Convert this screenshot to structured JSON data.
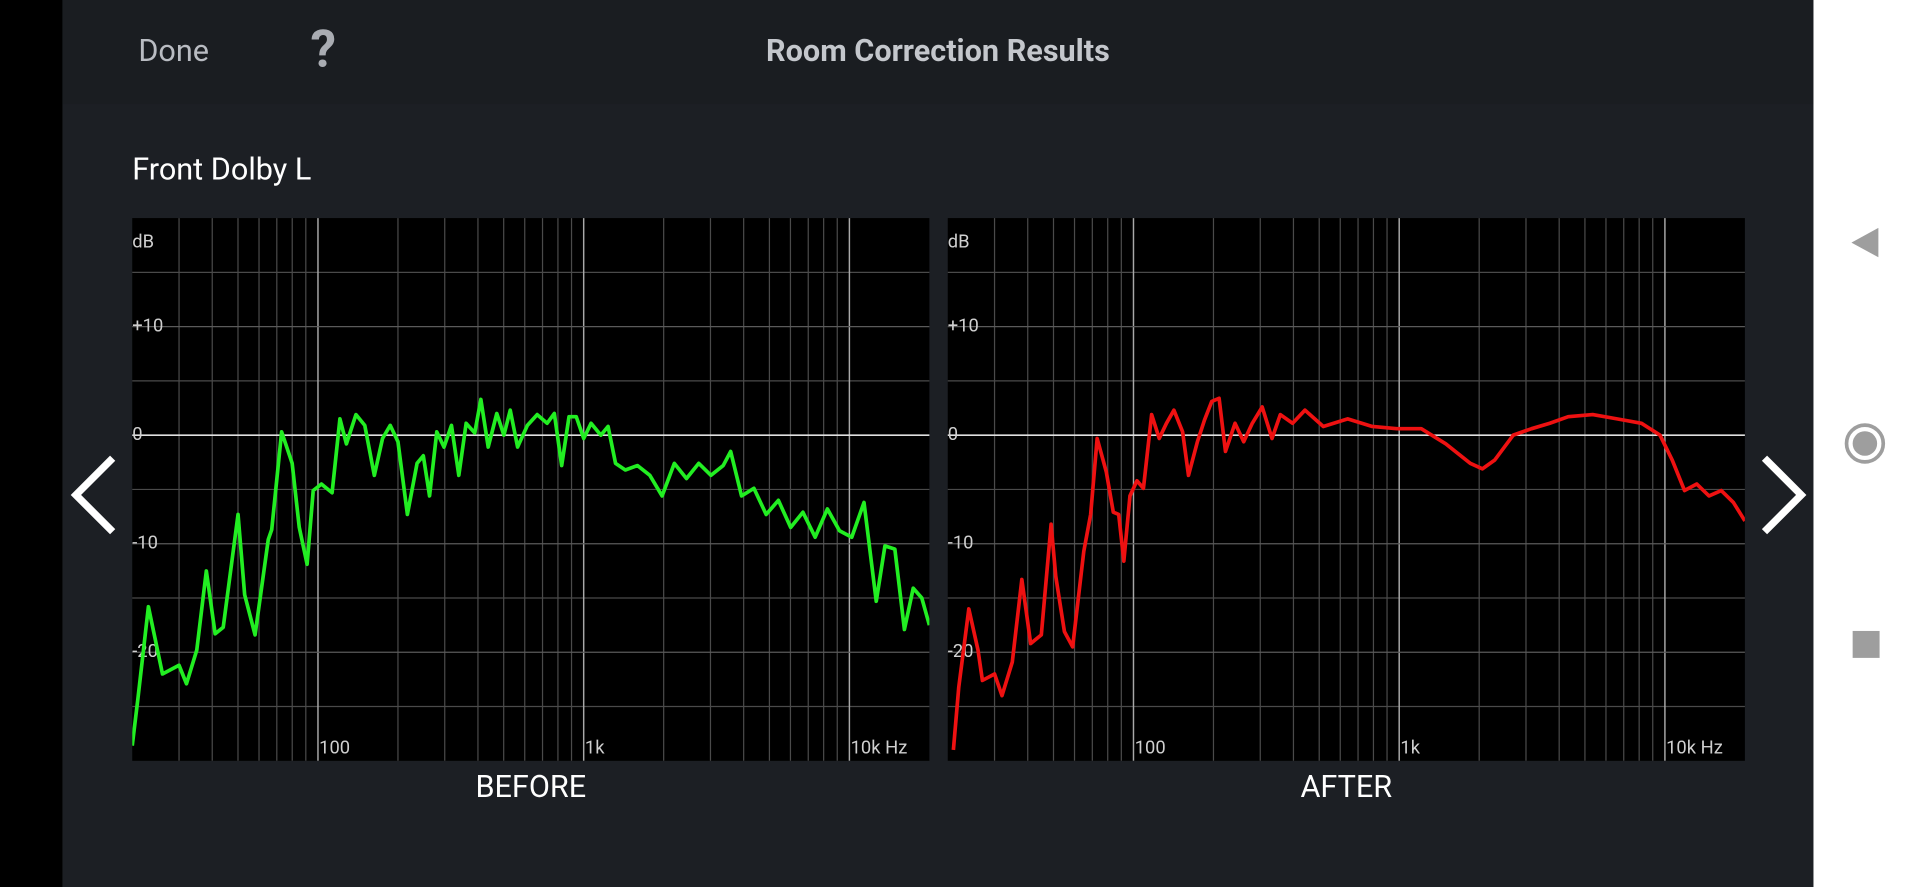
{
  "header": {
    "done": "Done",
    "help": "?",
    "title": "Room Correction Results"
  },
  "channel": "Front Dolby L",
  "chart_data": [
    {
      "type": "line",
      "title": "BEFORE",
      "y_label": "dB",
      "xscale": "log",
      "color": "#22ee22",
      "xlim": [
        20,
        20000
      ],
      "ylim": [
        -30,
        20
      ],
      "xticks": [
        {
          "value": 100,
          "label": "100"
        },
        {
          "value": 1000,
          "label": "1k"
        },
        {
          "value": 10000,
          "label": "10k Hz"
        }
      ],
      "xminor": [
        30,
        40,
        50,
        60,
        70,
        80,
        90,
        200,
        300,
        400,
        500,
        600,
        700,
        800,
        900,
        2000,
        3000,
        4000,
        5000,
        6000,
        7000,
        8000,
        9000
      ],
      "yticks": [
        {
          "value": 10,
          "label": "+10"
        },
        0,
        -10,
        -20
      ],
      "yminor": [
        15,
        5,
        -5,
        -15,
        -25
      ],
      "x": [
        20,
        21,
        23,
        26,
        30,
        32,
        35,
        38,
        41,
        44,
        50,
        53,
        58,
        65,
        67,
        73,
        80,
        85,
        91,
        96,
        103,
        113,
        121,
        128,
        139,
        150,
        163,
        175,
        187,
        200,
        217,
        236,
        249,
        263,
        280,
        298,
        318,
        339,
        361,
        389,
        410,
        437,
        471,
        501,
        529,
        564,
        614,
        668,
        728,
        775,
        826,
        881,
        938,
        1000,
        1066,
        1161,
        1236,
        1318,
        1435,
        1594,
        1774,
        1972,
        2193,
        2437,
        2710,
        3013,
        3350,
        3572,
        3929,
        4373,
        4862,
        5405,
        6010,
        6683,
        7430,
        8260,
        9183,
        10210,
        11350,
        12620,
        13600,
        14820,
        16110,
        17380,
        18720,
        20000
      ],
      "values": [
        -28.6,
        -24.3,
        -15.8,
        -22.0,
        -21.2,
        -22.9,
        -19.8,
        -12.5,
        -18.3,
        -17.7,
        -7.3,
        -14.7,
        -18.4,
        -9.6,
        -8.7,
        0.3,
        -2.6,
        -8.5,
        -11.9,
        -5.1,
        -4.5,
        -5.3,
        1.5,
        -0.8,
        1.9,
        0.9,
        -3.7,
        -0.3,
        0.9,
        -0.6,
        -7.3,
        -2.6,
        -1.9,
        -5.6,
        0.3,
        -1.1,
        0.9,
        -3.7,
        1.1,
        0.2,
        3.3,
        -1.1,
        2.0,
        0,
        2.3,
        -1.1,
        0.9,
        1.9,
        1.1,
        2.0,
        -2.8,
        1.7,
        1.7,
        -0.3,
        1.1,
        0,
        0.8,
        -2.6,
        -3.2,
        -2.8,
        -3.7,
        -5.6,
        -2.6,
        -4.0,
        -2.6,
        -3.7,
        -2.8,
        -1.5,
        -5.6,
        -4.9,
        -7.3,
        -6.0,
        -8.5,
        -7.1,
        -9.4,
        -6.8,
        -8.8,
        -9.4,
        -6.2,
        -15.3,
        -10.2,
        -10.5,
        -17.9,
        -14.1,
        -15.0,
        -17.5
      ]
    },
    {
      "type": "line",
      "title": "AFTER",
      "y_label": "dB",
      "xscale": "log",
      "color": "#ee1111",
      "xlim": [
        20,
        20000
      ],
      "ylim": [
        -30,
        20
      ],
      "xticks": [
        {
          "value": 100,
          "label": "100"
        },
        {
          "value": 1000,
          "label": "1k"
        },
        {
          "value": 10000,
          "label": "10k Hz"
        }
      ],
      "xminor": [
        30,
        40,
        50,
        60,
        70,
        80,
        90,
        200,
        300,
        400,
        500,
        600,
        700,
        800,
        900,
        2000,
        3000,
        4000,
        5000,
        6000,
        7000,
        8000,
        9000
      ],
      "yticks": [
        {
          "value": 10,
          "label": "+10"
        },
        0,
        -10,
        -20
      ],
      "yminor": [
        15,
        5,
        -5,
        -15,
        -25
      ],
      "x": [
        21,
        22,
        24,
        26,
        27,
        30,
        32,
        35,
        38,
        41,
        45,
        49,
        51,
        55,
        59,
        65,
        69,
        73,
        79,
        84,
        88,
        92,
        97,
        103,
        109,
        117,
        125,
        133,
        142,
        153,
        161,
        174,
        185,
        197,
        210,
        222,
        241,
        260,
        280,
        305,
        332,
        357,
        397,
        442,
        518,
        640,
        792,
        979,
        1211,
        1497,
        1851,
        2056,
        2287,
        2685,
        3148,
        3690,
        4325,
        5346,
        6607,
        8166,
        9590,
        10660,
        11850,
        13180,
        14650,
        16290,
        18110,
        20000
      ],
      "values": [
        -29.0,
        -23.2,
        -16.0,
        -19.8,
        -22.6,
        -22.0,
        -24.0,
        -20.9,
        -13.3,
        -19.2,
        -18.4,
        -8.2,
        -13.0,
        -18.1,
        -19.5,
        -10.7,
        -7.3,
        -0.3,
        -3.4,
        -7.1,
        -7.3,
        -11.6,
        -5.6,
        -4.2,
        -4.9,
        1.9,
        -0.3,
        1.1,
        2.3,
        0.3,
        -3.7,
        -0.6,
        1.4,
        3.1,
        3.4,
        -1.5,
        1.1,
        -0.6,
        1.1,
        2.6,
        -0.3,
        1.9,
        1.1,
        2.3,
        0.8,
        1.5,
        0.8,
        0.6,
        0.6,
        -0.8,
        -2.6,
        -3.1,
        -2.3,
        0,
        0.6,
        1.1,
        1.7,
        1.9,
        1.5,
        1.1,
        0,
        -2.3,
        -5.1,
        -4.5,
        -5.6,
        -5.1,
        -6.2,
        -7.9
      ]
    }
  ]
}
